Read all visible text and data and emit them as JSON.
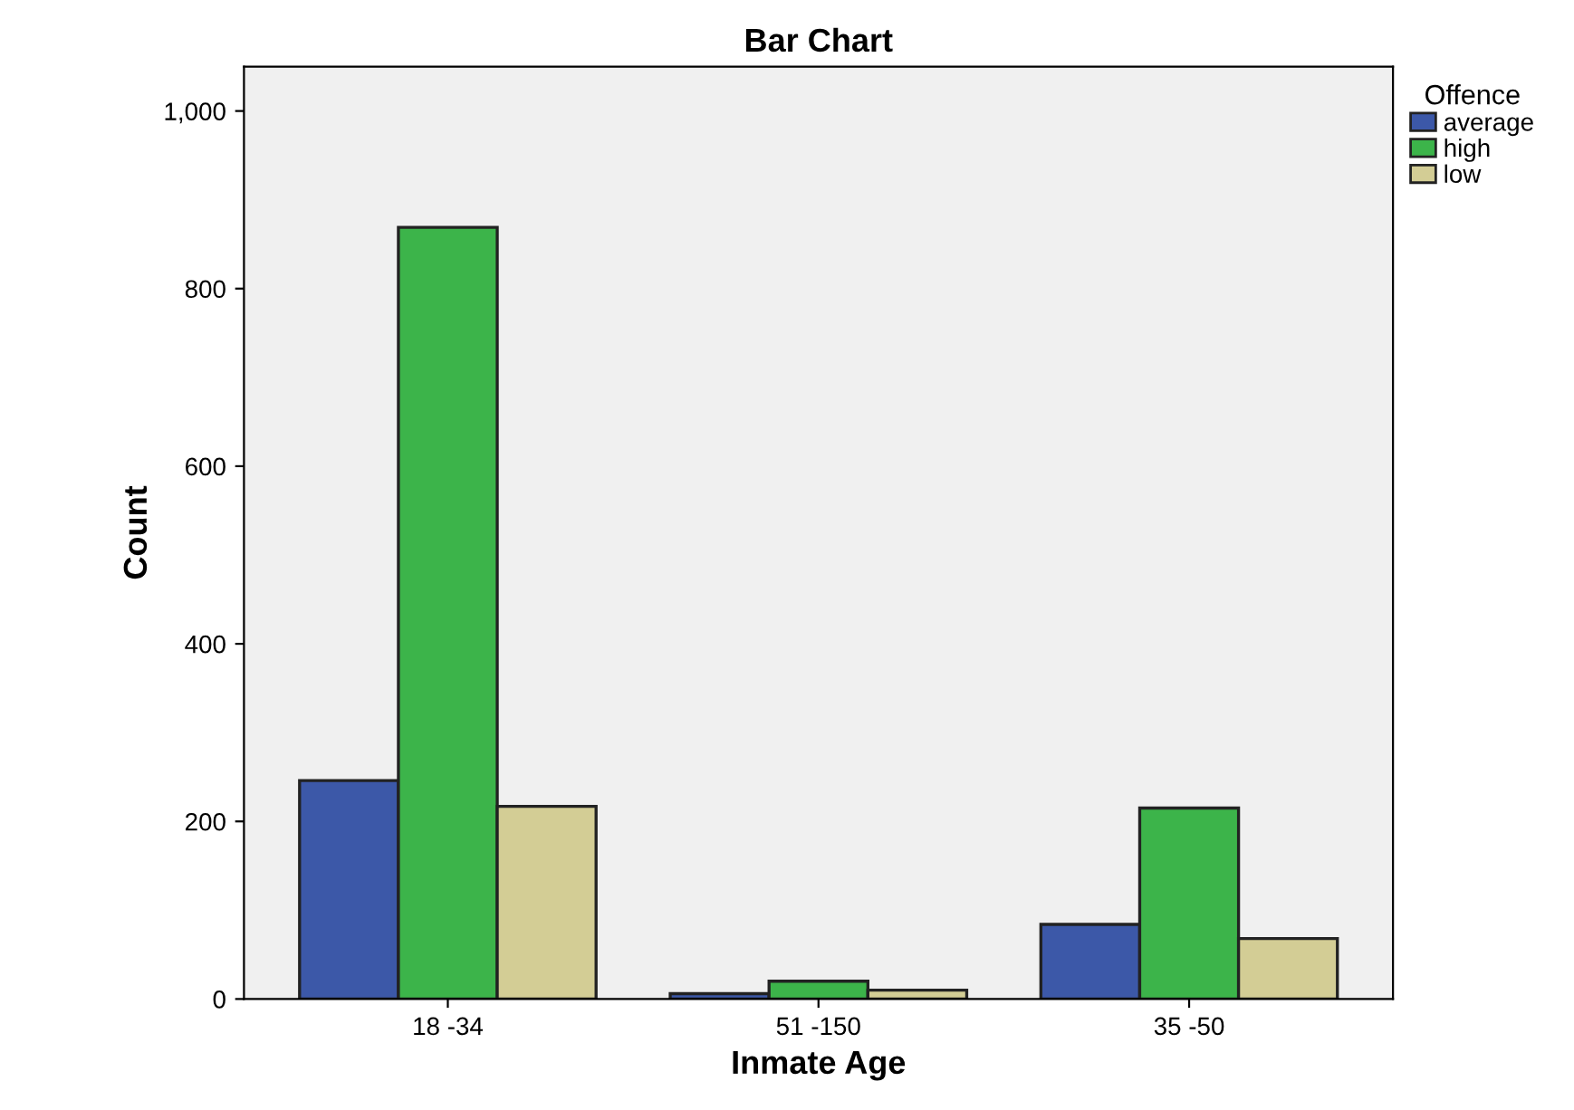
{
  "chart_data": {
    "type": "bar",
    "title": "Bar Chart",
    "xlabel": "Inmate Age",
    "ylabel": "Count",
    "legend_title": "Offence",
    "categories": [
      "18 -34",
      "51 -150",
      "35 -50"
    ],
    "series": [
      {
        "name": "average",
        "color": "#3c58a8",
        "values": [
          246,
          6,
          84
        ]
      },
      {
        "name": "high",
        "color": "#3cb44a",
        "values": [
          869,
          20,
          215
        ]
      },
      {
        "name": "low",
        "color": "#d3cd95",
        "values": [
          217,
          10,
          68
        ]
      }
    ],
    "ylim": [
      0,
      1050
    ],
    "yticks": [
      0,
      200,
      400,
      600,
      800,
      {
        "value": 1000,
        "label": "1,000"
      }
    ],
    "grid": false,
    "legend": "top right"
  }
}
